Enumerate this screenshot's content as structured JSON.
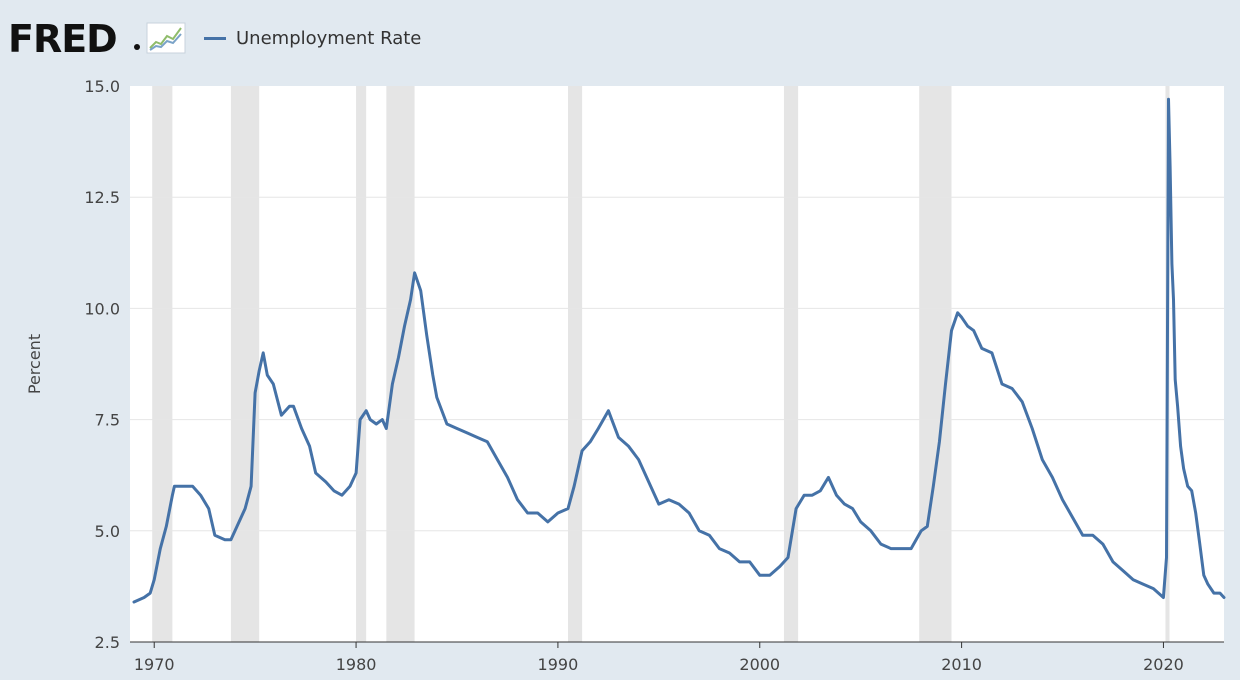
{
  "header": {
    "logo_text": "FRED",
    "logo_icon": "chart-trend-icon",
    "legend": [
      {
        "label": "Unemployment Rate",
        "color": "#4572a7"
      }
    ]
  },
  "colors": {
    "background": "#e1e9f0",
    "plot_area": "#ffffff",
    "recession": "#e5e5e5",
    "gridline": "#e6e6e6",
    "line": "#4572a7"
  },
  "chart_data": {
    "type": "line",
    "title": "",
    "xlabel": "",
    "ylabel": "Percent",
    "xlim": [
      1968.8,
      2023.0
    ],
    "ylim": [
      2.5,
      15.0
    ],
    "yticks": [
      "15.0",
      "12.5",
      "10.0",
      "7.5",
      "5.0",
      "2.5"
    ],
    "xticks": [
      "1970",
      "1980",
      "1990",
      "2000",
      "2010",
      "2020"
    ],
    "grid": true,
    "legend_position": "top-left",
    "recessions": [
      [
        1969.9,
        1970.9
      ],
      [
        1973.8,
        1975.2
      ],
      [
        1980.0,
        1980.5
      ],
      [
        1981.5,
        1982.9
      ],
      [
        1990.5,
        1991.2
      ],
      [
        2001.2,
        2001.9
      ],
      [
        2007.9,
        2009.5
      ],
      [
        2020.1,
        2020.3
      ]
    ],
    "series": [
      {
        "name": "Unemployment Rate",
        "x": [
          1969.0,
          1969.5,
          1969.8,
          1970.0,
          1970.3,
          1970.6,
          1970.9,
          1971.0,
          1971.5,
          1971.9,
          1972.3,
          1972.7,
          1973.0,
          1973.5,
          1973.8,
          1974.1,
          1974.5,
          1974.8,
          1975.0,
          1975.2,
          1975.4,
          1975.6,
          1975.9,
          1976.3,
          1976.7,
          1976.9,
          1977.3,
          1977.7,
          1978.0,
          1978.5,
          1978.9,
          1979.3,
          1979.7,
          1980.0,
          1980.2,
          1980.5,
          1980.7,
          1981.0,
          1981.3,
          1981.5,
          1981.8,
          1982.1,
          1982.4,
          1982.7,
          1982.9,
          1983.2,
          1983.5,
          1983.8,
          1984.0,
          1984.5,
          1985.0,
          1985.5,
          1986.0,
          1986.5,
          1987.0,
          1987.5,
          1988.0,
          1988.5,
          1989.0,
          1989.5,
          1990.0,
          1990.5,
          1990.8,
          1991.2,
          1991.6,
          1992.0,
          1992.5,
          1993.0,
          1993.5,
          1994.0,
          1994.5,
          1995.0,
          1995.5,
          1996.0,
          1996.5,
          1997.0,
          1997.5,
          1998.0,
          1998.5,
          1999.0,
          1999.5,
          2000.0,
          2000.5,
          2001.0,
          2001.4,
          2001.8,
          2002.2,
          2002.6,
          2003.0,
          2003.4,
          2003.8,
          2004.2,
          2004.6,
          2005.0,
          2005.5,
          2006.0,
          2006.5,
          2007.0,
          2007.5,
          2008.0,
          2008.3,
          2008.6,
          2008.9,
          2009.2,
          2009.5,
          2009.8,
          2010.0,
          2010.3,
          2010.6,
          2011.0,
          2011.5,
          2012.0,
          2012.5,
          2013.0,
          2013.5,
          2014.0,
          2014.5,
          2015.0,
          2015.5,
          2016.0,
          2016.5,
          2017.0,
          2017.5,
          2018.0,
          2018.5,
          2019.0,
          2019.5,
          2020.0,
          2020.15,
          2020.25,
          2020.33,
          2020.42,
          2020.5,
          2020.58,
          2020.7,
          2020.85,
          2021.0,
          2021.2,
          2021.4,
          2021.6,
          2021.8,
          2022.0,
          2022.2,
          2022.5,
          2022.8,
          2023.0
        ],
        "values": [
          3.4,
          3.5,
          3.6,
          3.9,
          4.6,
          5.1,
          5.8,
          6.0,
          6.0,
          6.0,
          5.8,
          5.5,
          4.9,
          4.8,
          4.8,
          5.1,
          5.5,
          6.0,
          8.1,
          8.6,
          9.0,
          8.5,
          8.3,
          7.6,
          7.8,
          7.8,
          7.3,
          6.9,
          6.3,
          6.1,
          5.9,
          5.8,
          6.0,
          6.3,
          7.5,
          7.7,
          7.5,
          7.4,
          7.5,
          7.3,
          8.3,
          8.9,
          9.6,
          10.2,
          10.8,
          10.4,
          9.4,
          8.5,
          8.0,
          7.4,
          7.3,
          7.2,
          7.1,
          7.0,
          6.6,
          6.2,
          5.7,
          5.4,
          5.4,
          5.2,
          5.4,
          5.5,
          6.0,
          6.8,
          7.0,
          7.3,
          7.7,
          7.1,
          6.9,
          6.6,
          6.1,
          5.6,
          5.7,
          5.6,
          5.4,
          5.0,
          4.9,
          4.6,
          4.5,
          4.3,
          4.3,
          4.0,
          4.0,
          4.2,
          4.4,
          5.5,
          5.8,
          5.8,
          5.9,
          6.2,
          5.8,
          5.6,
          5.5,
          5.2,
          5.0,
          4.7,
          4.6,
          4.6,
          4.6,
          5.0,
          5.1,
          6.0,
          7.0,
          8.3,
          9.5,
          9.9,
          9.8,
          9.6,
          9.5,
          9.1,
          9.0,
          8.3,
          8.2,
          7.9,
          7.3,
          6.6,
          6.2,
          5.7,
          5.3,
          4.9,
          4.9,
          4.7,
          4.3,
          4.1,
          3.9,
          3.8,
          3.7,
          3.5,
          4.4,
          14.7,
          13.2,
          11.0,
          10.2,
          8.4,
          7.8,
          6.9,
          6.4,
          6.0,
          5.9,
          5.4,
          4.7,
          4.0,
          3.8,
          3.6,
          3.6,
          3.5
        ]
      }
    ]
  }
}
